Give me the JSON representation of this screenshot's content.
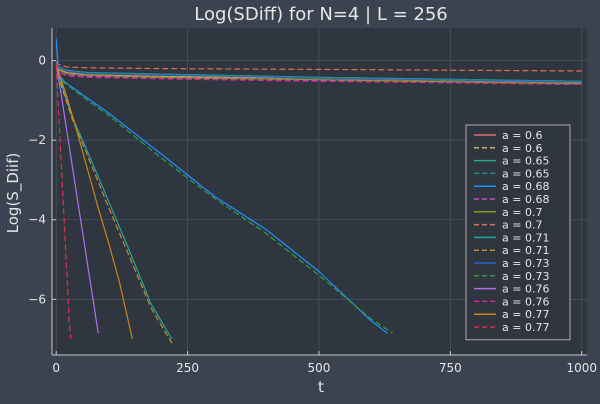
{
  "chart_data": {
    "type": "line",
    "title": "Log(SDiff) for N=4 | L = 256",
    "xlabel": "t",
    "ylabel": "Log(S_Diif)",
    "xlim": [
      -8,
      1010
    ],
    "ylim": [
      -7.4,
      0.82
    ],
    "xticks": [
      0,
      250,
      500,
      750,
      1000
    ],
    "xtick_labels": [
      "0",
      "250",
      "500",
      "750",
      "1000"
    ],
    "yticks": [
      0,
      -2,
      -4,
      -6
    ],
    "ytick_labels": [
      "0",
      "−2",
      "−4",
      "−6"
    ],
    "grid": true,
    "legend_position": "bottom-right",
    "series": [
      {
        "name": "a = 0.6",
        "style": "solid",
        "color": "#e26f6f",
        "x": [
          0,
          5,
          20,
          60,
          200,
          500,
          1000
        ],
        "y": [
          -0.1,
          -0.22,
          -0.3,
          -0.36,
          -0.4,
          -0.44,
          -0.55
        ]
      },
      {
        "name": "a = 0.6",
        "style": "dashed",
        "color": "#c9a96b",
        "x": [
          0,
          5,
          20,
          60,
          200,
          500,
          1000
        ],
        "y": [
          -0.1,
          -0.22,
          -0.3,
          -0.36,
          -0.4,
          -0.44,
          -0.55
        ]
      },
      {
        "name": "a = 0.65",
        "style": "solid",
        "color": "#2aa88c",
        "x": [
          0,
          5,
          20,
          60,
          200,
          500,
          1000
        ],
        "y": [
          -0.05,
          -0.16,
          -0.24,
          -0.3,
          -0.34,
          -0.42,
          -0.52
        ]
      },
      {
        "name": "a = 0.65",
        "style": "dashed",
        "color": "#1f8f8a",
        "x": [
          0,
          5,
          20,
          60,
          200,
          500,
          1000
        ],
        "y": [
          -0.05,
          -0.16,
          -0.24,
          -0.3,
          -0.34,
          -0.42,
          -0.52
        ]
      },
      {
        "name": "a = 0.68",
        "style": "solid",
        "color": "#1e90ff",
        "x": [
          0,
          5,
          15,
          60,
          100,
          200,
          300,
          400,
          500,
          600,
          630
        ],
        "y": [
          0.55,
          -0.35,
          -0.52,
          -0.95,
          -1.32,
          -2.35,
          -3.4,
          -4.25,
          -5.3,
          -6.55,
          -6.85
        ]
      },
      {
        "name": "a = 0.68",
        "style": "dashed",
        "color": "#d048e0",
        "x": [
          0,
          5,
          20,
          60,
          200,
          500,
          1000
        ],
        "y": [
          -0.12,
          -0.3,
          -0.36,
          -0.4,
          -0.45,
          -0.5,
          -0.6
        ]
      },
      {
        "name": "a = 0.7",
        "style": "solid",
        "color": "#8c9a1c",
        "x": [
          0,
          5,
          20,
          60,
          200,
          500,
          1000
        ],
        "y": [
          -0.1,
          -0.24,
          -0.32,
          -0.37,
          -0.42,
          -0.48,
          -0.58
        ]
      },
      {
        "name": "a = 0.7",
        "style": "dashed",
        "color": "#e0704a",
        "x": [
          0,
          5,
          20,
          60,
          200,
          500,
          1000
        ],
        "y": [
          -0.02,
          -0.1,
          -0.16,
          -0.18,
          -0.2,
          -0.22,
          -0.26
        ]
      },
      {
        "name": "a = 0.71",
        "style": "solid",
        "color": "#1fa6a0",
        "x": [
          0,
          10,
          30,
          60,
          100,
          140,
          180,
          220
        ],
        "y": [
          -0.1,
          -0.6,
          -1.4,
          -2.3,
          -3.55,
          -4.8,
          -6.1,
          -7.0
        ]
      },
      {
        "name": "a = 0.71",
        "style": "dashed",
        "color": "#c98a2a",
        "x": [
          0,
          10,
          30,
          60,
          100,
          140,
          180,
          220
        ],
        "y": [
          -0.1,
          -0.65,
          -1.45,
          -2.4,
          -3.7,
          -4.95,
          -6.2,
          -7.1
        ]
      },
      {
        "name": "a = 0.73",
        "style": "solid",
        "color": "#2a64c8",
        "x": [
          0,
          5,
          20,
          60,
          200,
          500,
          1000
        ],
        "y": [
          -0.05,
          -0.18,
          -0.26,
          -0.32,
          -0.36,
          -0.44,
          -0.54
        ]
      },
      {
        "name": "a = 0.73",
        "style": "dashed",
        "color": "#2e9f3c",
        "x": [
          0,
          5,
          20,
          60,
          100,
          200,
          300,
          400,
          500,
          600,
          640
        ],
        "y": [
          -0.1,
          -0.45,
          -0.6,
          -1.0,
          -1.38,
          -2.45,
          -3.45,
          -4.35,
          -5.4,
          -6.5,
          -6.85
        ]
      },
      {
        "name": "a = 0.76",
        "style": "solid",
        "color": "#b06ef0",
        "x": [
          0,
          10,
          20,
          30,
          40,
          50,
          60,
          70,
          80
        ],
        "y": [
          -0.1,
          -0.9,
          -1.75,
          -2.6,
          -3.45,
          -4.3,
          -5.15,
          -6.0,
          -6.85
        ]
      },
      {
        "name": "a = 0.76",
        "style": "dashed",
        "color": "#d02a9a",
        "x": [
          0,
          5,
          20,
          60,
          200,
          500,
          1000
        ],
        "y": [
          -0.12,
          -0.3,
          -0.38,
          -0.42,
          -0.46,
          -0.52,
          -0.6
        ]
      },
      {
        "name": "a = 0.77",
        "style": "solid",
        "color": "#c6861a",
        "x": [
          0,
          20,
          40,
          60,
          80,
          100,
          120,
          145
        ],
        "y": [
          -0.1,
          -0.9,
          -1.8,
          -2.75,
          -3.7,
          -4.6,
          -5.55,
          -7.0
        ]
      },
      {
        "name": "a = 0.77",
        "style": "dashed",
        "color": "#e0304a",
        "x": [
          0,
          5,
          10,
          15,
          20,
          25,
          28
        ],
        "y": [
          -0.1,
          -1.4,
          -2.7,
          -4.0,
          -5.3,
          -6.6,
          -7.0
        ]
      }
    ]
  }
}
